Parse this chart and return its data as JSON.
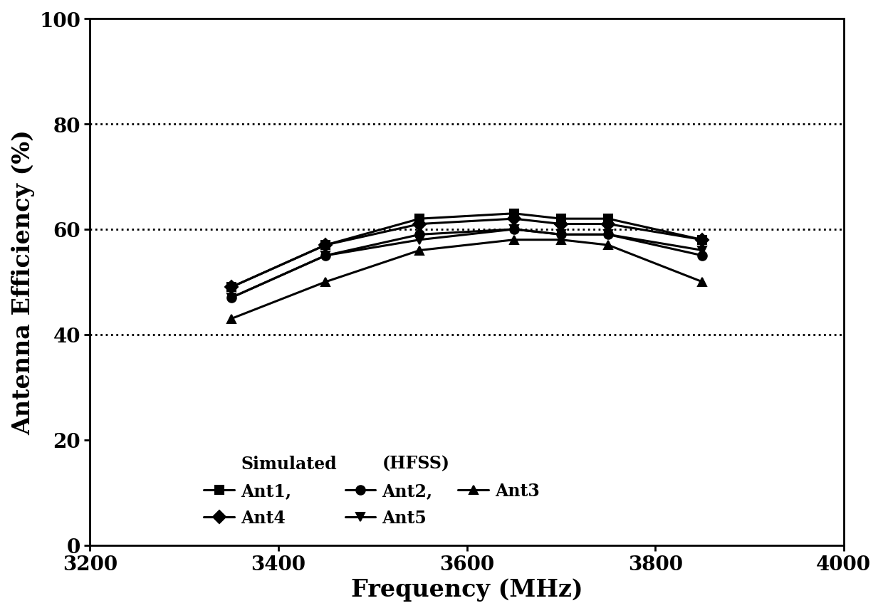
{
  "title": "",
  "xlabel": "Frequency (MHz)",
  "ylabel": "Antenna Efficiency (%)",
  "xlim": [
    3200,
    4000
  ],
  "ylim": [
    0,
    100
  ],
  "xticks": [
    3200,
    3400,
    3600,
    3800,
    4000
  ],
  "yticks": [
    0,
    20,
    40,
    60,
    80,
    100
  ],
  "hgrid_dashed": [
    40,
    60,
    80
  ],
  "freq": [
    3350,
    3450,
    3550,
    3650,
    3700,
    3750,
    3850
  ],
  "ant1": [
    49,
    57,
    62,
    63,
    62,
    62,
    58
  ],
  "ant2": [
    47,
    55,
    59,
    60,
    59,
    59,
    55
  ],
  "ant3": [
    43,
    50,
    56,
    58,
    58,
    57,
    50
  ],
  "ant4": [
    49,
    57,
    61,
    62,
    61,
    61,
    58
  ],
  "ant5": [
    47,
    55,
    58,
    60,
    59,
    59,
    56
  ],
  "line_color": "#000000",
  "line_width": 2.2,
  "marker_size": 9,
  "background_color": "#ffffff",
  "font_size_axis": 24,
  "font_size_tick": 20,
  "font_size_legend": 17
}
